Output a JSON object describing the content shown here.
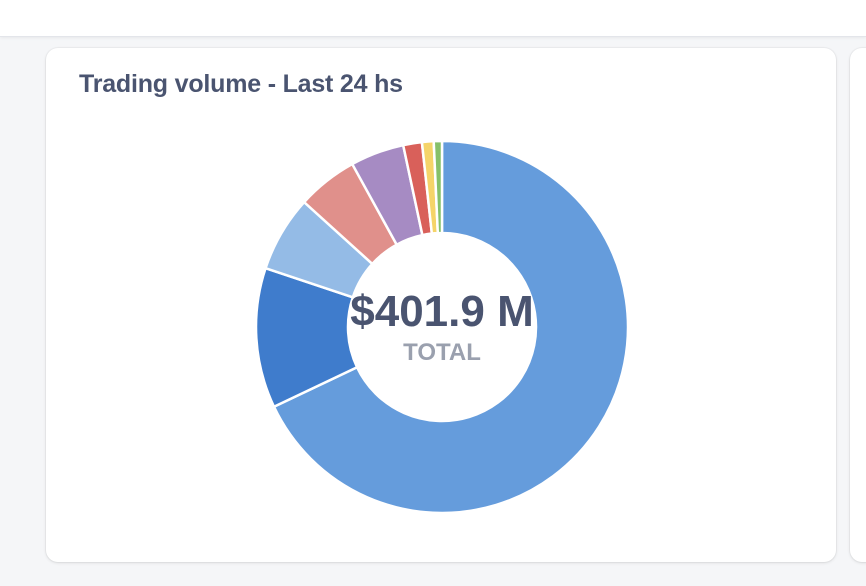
{
  "chart_data": {
    "type": "pie",
    "title": "Trading volume - Last 24 hs",
    "center_value": "$401.9 M",
    "center_label": "TOTAL",
    "slices": [
      {
        "value": 67.0,
        "color": "#659cdc"
      },
      {
        "value": 12.0,
        "color": "#3f7ccc"
      },
      {
        "value": 6.5,
        "color": "#94bbe6"
      },
      {
        "value": 5.2,
        "color": "#e0908b"
      },
      {
        "value": 4.6,
        "color": "#a68bc3"
      },
      {
        "value": 1.6,
        "color": "#d9605a"
      },
      {
        "value": 1.0,
        "color": "#f5d469"
      },
      {
        "value": 0.7,
        "color": "#86c069"
      }
    ]
  }
}
